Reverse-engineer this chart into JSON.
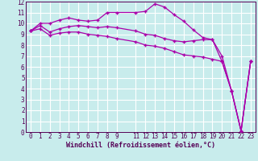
{
  "xlabel": "Windchill (Refroidissement éolien,°C)",
  "bg_color": "#c8ecec",
  "grid_color": "#ffffff",
  "line_color": "#aa00aa",
  "xlim": [
    -0.5,
    23.5
  ],
  "ylim": [
    0,
    12
  ],
  "line1_x": [
    0,
    1,
    2,
    3,
    4,
    5,
    6,
    7,
    8,
    9,
    11,
    12,
    13,
    14,
    15,
    16,
    17,
    18,
    19,
    20,
    21,
    22,
    23
  ],
  "line1_y": [
    9.3,
    10.0,
    10.0,
    10.3,
    10.5,
    10.3,
    10.2,
    10.3,
    11.0,
    11.0,
    11.0,
    11.1,
    11.8,
    11.5,
    10.8,
    10.2,
    9.4,
    8.7,
    8.5,
    6.5,
    3.8,
    0.1,
    6.5
  ],
  "line2_x": [
    0,
    1,
    2,
    3,
    4,
    5,
    6,
    7,
    8,
    9,
    11,
    12,
    13,
    14,
    15,
    16,
    17,
    18,
    19,
    20,
    21,
    22,
    23
  ],
  "line2_y": [
    9.3,
    9.8,
    9.2,
    9.5,
    9.7,
    9.8,
    9.7,
    9.6,
    9.7,
    9.6,
    9.3,
    9.0,
    8.9,
    8.6,
    8.4,
    8.3,
    8.4,
    8.5,
    8.5,
    7.0,
    3.8,
    0.1,
    6.5
  ],
  "line3_x": [
    0,
    1,
    2,
    3,
    4,
    5,
    6,
    7,
    8,
    9,
    11,
    12,
    13,
    14,
    15,
    16,
    17,
    18,
    19,
    20,
    21,
    22,
    23
  ],
  "line3_y": [
    9.3,
    9.5,
    8.9,
    9.1,
    9.2,
    9.2,
    9.0,
    8.9,
    8.8,
    8.6,
    8.3,
    8.0,
    7.9,
    7.7,
    7.4,
    7.1,
    7.0,
    6.9,
    6.7,
    6.5,
    3.8,
    0.1,
    6.5
  ],
  "xticks": [
    0,
    1,
    2,
    3,
    4,
    5,
    6,
    7,
    8,
    9,
    11,
    12,
    13,
    14,
    15,
    16,
    17,
    18,
    19,
    20,
    21,
    22,
    23
  ],
  "xtick_labels": [
    "0",
    "1",
    "2",
    "3",
    "4",
    "5",
    "6",
    "7",
    "8",
    "9",
    "11",
    "12",
    "13",
    "14",
    "15",
    "16",
    "17",
    "18",
    "19",
    "20",
    "21",
    "22",
    "23"
  ],
  "yticks": [
    0,
    1,
    2,
    3,
    4,
    5,
    6,
    7,
    8,
    9,
    10,
    11,
    12
  ],
  "tick_fontsize": 5.5,
  "xlabel_fontsize": 6
}
